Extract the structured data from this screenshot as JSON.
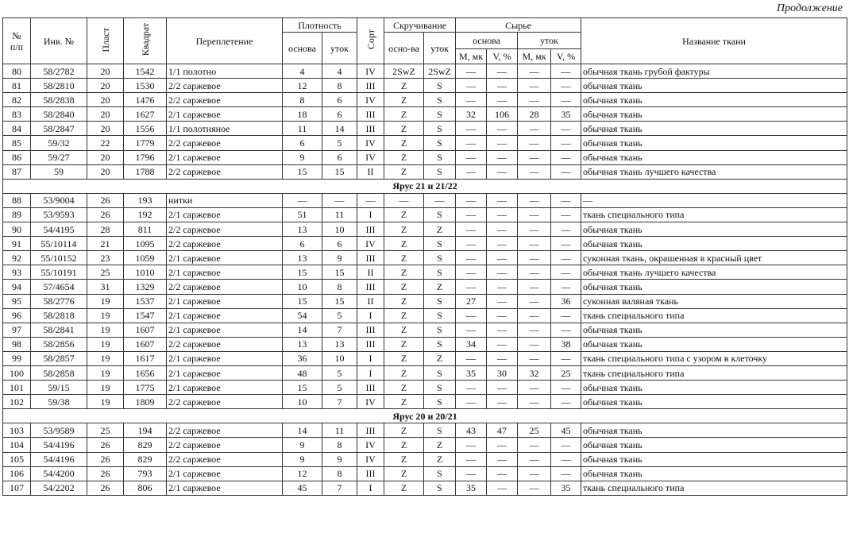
{
  "header": {
    "continuation": "Продолжение",
    "num": "№\nп/п",
    "inv": "Инв. №",
    "plast": "Пласт",
    "kvadrat": "Квадрат",
    "weave": "Переплетение",
    "density": "Плотность",
    "density_warp": "основа",
    "density_weft": "уток",
    "sort": "Сорт",
    "twist": "Скручивание",
    "twist_warp": "осно-ва",
    "twist_weft": "уток",
    "raw": "Сырье",
    "raw_warp": "основа",
    "raw_weft": "уток",
    "raw_warp_m": "M, мк",
    "raw_warp_v": "V, %",
    "raw_weft_m": "M, мк",
    "raw_weft_v": "V, %",
    "name": "Название ткани"
  },
  "body": [
    {
      "rows": [
        [
          "80",
          "58/2782",
          "20",
          "1542",
          "1/1 полотно",
          "4",
          "4",
          "IV",
          "2SwZ",
          "2SwZ",
          "—",
          "—",
          "—",
          "—",
          "обычная ткань грубой фактуры"
        ],
        [
          "81",
          "58/2810",
          "20",
          "1530",
          "2/2 саржевое",
          "12",
          "8",
          "III",
          "Z",
          "S",
          "—",
          "—",
          "—",
          "—",
          "обычная ткань"
        ],
        [
          "82",
          "58/2838",
          "20",
          "1476",
          "2/2 саржевое",
          "8",
          "6",
          "IV",
          "Z",
          "S",
          "—",
          "—",
          "—",
          "—",
          "обычная ткань"
        ],
        [
          "83",
          "58/2840",
          "20",
          "1627",
          "2/1 саржевое",
          "18",
          "6",
          "III",
          "Z",
          "S",
          "32",
          "106",
          "28",
          "35",
          "обычная ткань"
        ],
        [
          "84",
          "58/2847",
          "20",
          "1556",
          "1/1 полотняное",
          "11",
          "14",
          "III",
          "Z",
          "S",
          "—",
          "—",
          "—",
          "—",
          "обычная ткань"
        ],
        [
          "85",
          "59/32",
          "22",
          "1779",
          "2/2 саржевое",
          "6",
          "5",
          "IV",
          "Z",
          "S",
          "—",
          "—",
          "—",
          "—",
          "обычная ткань"
        ],
        [
          "86",
          "59/27",
          "20",
          "1796",
          "2/1 саржевое",
          "9",
          "6",
          "IV",
          "Z",
          "S",
          "—",
          "—",
          "—",
          "—",
          "обычная ткань"
        ],
        [
          "87",
          "59",
          "20",
          "1788",
          "2/2 саржевое",
          "15",
          "15",
          "II",
          "Z",
          "S",
          "—",
          "—",
          "—",
          "—",
          "обычная ткань лучшего качества"
        ]
      ]
    },
    {
      "title": "Ярус 21 и 21/22",
      "rows": [
        [
          "88",
          "53/9004",
          "26",
          "193",
          "нитки",
          "—",
          "—",
          "—",
          "—",
          "—",
          "—",
          "—",
          "—",
          "—",
          "—"
        ],
        [
          "89",
          "53/9593",
          "26",
          "192",
          "2/1 саржевое",
          "51",
          "11",
          "I",
          "Z",
          "S",
          "—",
          "—",
          "—",
          "—",
          "ткань специального типа"
        ],
        [
          "90",
          "54/4195",
          "28",
          "811",
          "2/2 саржевое",
          "13",
          "10",
          "III",
          "Z",
          "Z",
          "—",
          "—",
          "—",
          "—",
          "обычная ткань"
        ],
        [
          "91",
          "55/10114",
          "21",
          "1095",
          "2/2 саржевое",
          "6",
          "6",
          "IV",
          "Z",
          "S",
          "—",
          "—",
          "—",
          "—",
          "обычная ткань"
        ],
        [
          "92",
          "55/10152",
          "23",
          "1059",
          "2/1 саржевое",
          "13",
          "9",
          "III",
          "Z",
          "S",
          "—",
          "—",
          "—",
          "—",
          "суконная ткань, окрашенная в красный цвет"
        ],
        [
          "93",
          "55/10191",
          "25",
          "1010",
          "2/1 саржевое",
          "15",
          "15",
          "II",
          "Z",
          "S",
          "—",
          "—",
          "—",
          "—",
          "обычная ткань лучшего качества"
        ],
        [
          "94",
          "57/4654",
          "31",
          "1329",
          "2/2 саржевое",
          "10",
          "8",
          "III",
          "Z",
          "Z",
          "—",
          "—",
          "—",
          "—",
          "обычная ткань"
        ],
        [
          "95",
          "58/2776",
          "19",
          "1537",
          "2/1 саржевое",
          "15",
          "15",
          "II",
          "Z",
          "S",
          "27",
          "—",
          "—",
          "36",
          "суконная валяная ткань"
        ],
        [
          "96",
          "58/2818",
          "19",
          "1547",
          "2/1 саржевое",
          "54",
          "5",
          "I",
          "Z",
          "S",
          "—",
          "—",
          "—",
          "—",
          "ткань специального типа"
        ],
        [
          "97",
          "58/2841",
          "19",
          "1607",
          "2/1 саржевое",
          "14",
          "7",
          "III",
          "Z",
          "S",
          "—",
          "—",
          "—",
          "—",
          "обычная ткань"
        ],
        [
          "98",
          "58/2856",
          "19",
          "1607",
          "2/2 саржевое",
          "13",
          "13",
          "III",
          "Z",
          "S",
          "34",
          "—",
          "—",
          "38",
          "обычная ткань"
        ],
        [
          "99",
          "58/2857",
          "19",
          "1617",
          "2/1 саржевое",
          "36",
          "10",
          "I",
          "Z",
          "Z",
          "—",
          "—",
          "—",
          "—",
          "ткань специального типа с узором в клеточку"
        ],
        [
          "100",
          "58/2858",
          "19",
          "1656",
          "2/1 саржевое",
          "48",
          "5",
          "I",
          "Z",
          "S",
          "35",
          "30",
          "32",
          "25",
          "ткань специального типа"
        ],
        [
          "101",
          "59/15",
          "19",
          "1775",
          "2/1 саржевое",
          "15",
          "5",
          "III",
          "Z",
          "S",
          "—",
          "—",
          "—",
          "—",
          "обычная ткань"
        ],
        [
          "102",
          "59/38",
          "19",
          "1809",
          "2/2 саржевое",
          "10",
          "7",
          "IV",
          "Z",
          "S",
          "—",
          "—",
          "—",
          "—",
          "обычная ткань"
        ]
      ]
    },
    {
      "title": "Ярус 20 и 20/21",
      "rows": [
        [
          "103",
          "53/9589",
          "25",
          "194",
          "2/2 саржевое",
          "14",
          "11",
          "III",
          "Z",
          "S",
          "43",
          "47",
          "25",
          "45",
          "обычная ткань"
        ],
        [
          "104",
          "54/4196",
          "26",
          "829",
          "2/2 саржевое",
          "9",
          "8",
          "IV",
          "Z",
          "Z",
          "—",
          "—",
          "—",
          "—",
          "обычная ткань"
        ],
        [
          "105",
          "54/4196",
          "26",
          "829",
          "2/2 саржевое",
          "9",
          "9",
          "IV",
          "Z",
          "Z",
          "—",
          "—",
          "—",
          "—",
          "обычная ткань"
        ],
        [
          "106",
          "54/4200",
          "26",
          "793",
          "2/1 саржевое",
          "12",
          "8",
          "III",
          "Z",
          "S",
          "—",
          "—",
          "—",
          "—",
          "обычная ткань"
        ],
        [
          "107",
          "54/2202",
          "26",
          "806",
          "2/1 саржевое",
          "45",
          "7",
          "I",
          "Z",
          "S",
          "35",
          "—",
          "—",
          "35",
          "ткань специального типа"
        ]
      ]
    }
  ]
}
